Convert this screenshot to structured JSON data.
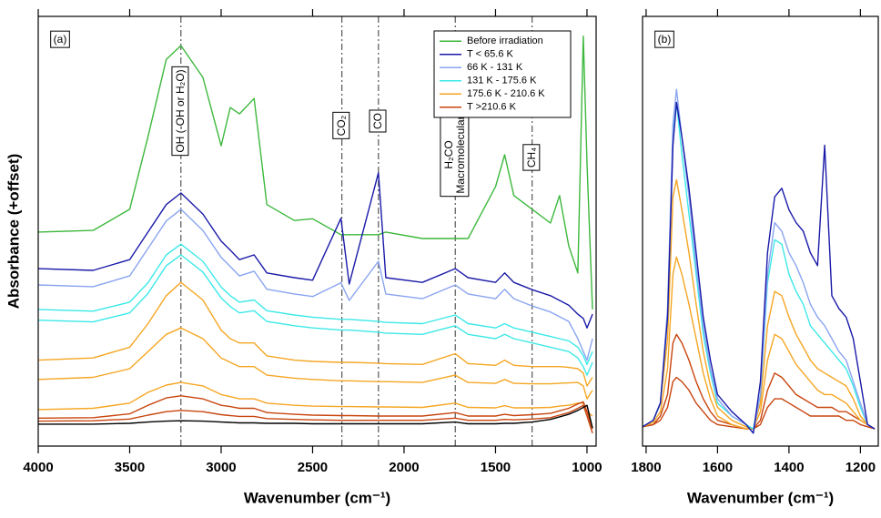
{
  "chart_data": [
    {
      "type": "line",
      "panel_label": "(a)",
      "ylabel": "Absorbance (+offset)",
      "xlabel": "Wavenumber (cm⁻¹)",
      "xlim": [
        4000,
        950
      ],
      "ylim": [
        0,
        100
      ],
      "xticks": [
        4000,
        3500,
        3000,
        2500,
        2000,
        1500,
        1000
      ],
      "legend": "upper right",
      "x": [
        4000,
        3700,
        3500,
        3400,
        3300,
        3220,
        3100,
        3000,
        2950,
        2900,
        2820,
        2750,
        2600,
        2500,
        2345,
        2300,
        2140,
        2100,
        1900,
        1720,
        1650,
        1500,
        1450,
        1400,
        1300,
        1200,
        1150,
        1100,
        1050,
        1020,
        1000,
        970
      ],
      "annotations": [
        {
          "lines": [
            "OH (-OH or H₂O)"
          ],
          "x": 3220
        },
        {
          "lines": [
            "CO₂"
          ],
          "x": 2340
        },
        {
          "lines": [
            "CO"
          ],
          "x": 2140
        },
        {
          "lines": [
            "H₂CO",
            "Macromolecular"
          ],
          "x": 1720
        },
        {
          "lines": [
            "CH₄"
          ],
          "x": 1300
        }
      ],
      "series": [
        {
          "name": "Before irradiation",
          "color": "#3cb83c",
          "values": [
            49.8,
            50.2,
            55.1,
            72.0,
            90.0,
            93.2,
            85.8,
            69.9,
            78.8,
            77.3,
            80.9,
            56.2,
            52.5,
            52.9,
            49.2,
            49.2,
            49.2,
            49.8,
            48.3,
            48.3,
            48.3,
            60.4,
            67.8,
            58.3,
            55.1,
            51.9,
            58.3,
            46.6,
            40.3,
            95.4,
            65.7,
            31.8
          ]
        },
        {
          "name": "T < 65.6 K",
          "color": "#1a1aa8",
          "values": [
            41.3,
            40.9,
            43.4,
            49.8,
            56.2,
            58.9,
            54.0,
            47.7,
            45.6,
            43.4,
            44.5,
            40.3,
            39.2,
            38.6,
            53.0,
            37.7,
            63.6,
            39.2,
            38.1,
            41.3,
            39.2,
            38.1,
            40.3,
            38.1,
            36.4,
            35.0,
            33.9,
            32.8,
            30.7,
            29.7,
            27.5,
            30.7
          ]
        },
        {
          "name": "66 K - 131 K",
          "color": "#8aa4f0",
          "values": [
            37.5,
            37.1,
            39.6,
            46.0,
            52.4,
            55.1,
            50.2,
            43.9,
            41.8,
            39.6,
            40.7,
            36.5,
            35.4,
            34.8,
            38.0,
            33.9,
            43.0,
            35.4,
            34.3,
            37.5,
            35.4,
            34.3,
            36.5,
            34.3,
            32.6,
            31.2,
            30.1,
            29.0,
            25.0,
            22.0,
            20.0,
            25.0
          ]
        },
        {
          "name": "131 K - 175.6 K",
          "color": "#3de8e8",
          "values": [
            31.8,
            31.4,
            33.5,
            38.0,
            44.5,
            47.0,
            43.0,
            37.0,
            35.0,
            33.5,
            34.0,
            31.5,
            30.5,
            30.0,
            29.5,
            29.5,
            29.0,
            28.8,
            28.5,
            30.5,
            28.5,
            27.5,
            28.5,
            27.5,
            26.5,
            25.5,
            25.0,
            24.5,
            23.0,
            21.0,
            19.0,
            22.0
          ]
        },
        {
          "color": "#3de8e8",
          "values": [
            29.3,
            28.9,
            31,
            35.5,
            42,
            44.5,
            40.5,
            34.5,
            32.5,
            31,
            31.5,
            29,
            28,
            27.5,
            27,
            27,
            26.5,
            26.3,
            26,
            28,
            26,
            25,
            26,
            25,
            24,
            23,
            22.5,
            22,
            20.5,
            18.5,
            16.5,
            19.5
          ]
        },
        {
          "name": "175.6 K - 210.6 K",
          "color": "#f5a623",
          "values": [
            20.0,
            20.5,
            23.0,
            28.5,
            35.0,
            38.1,
            34.0,
            27.0,
            25.0,
            24.0,
            24.0,
            21.0,
            20.0,
            19.7,
            19.5,
            19.5,
            19.3,
            19.2,
            19.0,
            21.5,
            19.2,
            18.8,
            20.0,
            18.8,
            18.5,
            18.5,
            18.5,
            18.3,
            18.0,
            17.0,
            14.0,
            16.0
          ]
        },
        {
          "color": "#f5a623",
          "values": [
            15.5,
            16,
            18,
            22,
            26,
            27.5,
            25,
            20.5,
            19.5,
            18.5,
            18.5,
            16.5,
            15.8,
            15.5,
            15.2,
            15.2,
            15,
            15,
            14.8,
            16.5,
            14.8,
            14.6,
            15.5,
            14.6,
            14.5,
            14.5,
            14.6,
            14.7,
            14.8,
            14,
            11,
            13
          ]
        },
        {
          "color": "#f5a623",
          "values": [
            8.5,
            8.8,
            10,
            12.5,
            14.2,
            14.8,
            14,
            12,
            11.5,
            11,
            11,
            10,
            9.5,
            9.3,
            9.2,
            9.2,
            9.1,
            9.1,
            9,
            10,
            9,
            8.9,
            9.4,
            8.9,
            8.9,
            9,
            9.3,
            9.5,
            10,
            10,
            8,
            7
          ]
        },
        {
          "name": "T >210.6 K",
          "color": "#c8450e",
          "values": [
            6.5,
            6.6,
            7.5,
            9.5,
            11.2,
            11.7,
            11,
            9.5,
            9.2,
            8.8,
            8.8,
            7.8,
            7.4,
            7.2,
            7.1,
            7.1,
            7,
            7,
            7,
            7.8,
            7,
            7,
            7.4,
            7.1,
            7.3,
            7.6,
            8.2,
            8.8,
            9.8,
            10.3,
            8,
            4
          ]
        },
        {
          "color": "#c8450e",
          "values": [
            5.8,
            5.9,
            6.3,
            7.2,
            8,
            8.3,
            8,
            7.3,
            7.1,
            6.9,
            6.9,
            6.4,
            6.2,
            6.1,
            6,
            6,
            6,
            6,
            6,
            6.5,
            6,
            6,
            6.2,
            6.1,
            6.3,
            6.6,
            7.2,
            7.8,
            8.8,
            9.5,
            7,
            3
          ]
        },
        {
          "color": "#000000",
          "values": [
            5.1,
            5.1,
            5.3,
            5.6,
            5.8,
            5.9,
            5.8,
            5.6,
            5.5,
            5.4,
            5.4,
            5.3,
            5.3,
            5.2,
            5.2,
            5.2,
            5.2,
            5.2,
            5.2,
            5.6,
            5.2,
            5.2,
            5.3,
            5.3,
            5.6,
            6.2,
            6.8,
            7.4,
            8.3,
            9.0,
            9.5,
            4.2
          ]
        }
      ]
    },
    {
      "type": "line",
      "panel_label": "(b)",
      "xlabel": "Wavenumber (cm⁻¹)",
      "xlim": [
        1810,
        1150
      ],
      "ylim": [
        0,
        100
      ],
      "xticks": [
        1800,
        1600,
        1400,
        1200
      ],
      "x": [
        1810,
        1780,
        1760,
        1740,
        1725,
        1715,
        1700,
        1680,
        1660,
        1640,
        1620,
        1600,
        1560,
        1520,
        1500,
        1480,
        1460,
        1440,
        1420,
        1400,
        1380,
        1360,
        1340,
        1320,
        1300,
        1280,
        1260,
        1240,
        1220,
        1200,
        1180,
        1160
      ],
      "series": [
        {
          "color": "#c8450e",
          "values": [
            4.5,
            5,
            6,
            9,
            15,
            16,
            15,
            13,
            10,
            8,
            6,
            5,
            4.5,
            4,
            4,
            5,
            9,
            11,
            11,
            10,
            9,
            8,
            7,
            7,
            7,
            7,
            7,
            6,
            6,
            5,
            4.5,
            4
          ]
        },
        {
          "color": "#c8450e",
          "values": [
            4.5,
            5,
            7,
            12,
            24,
            26,
            24,
            20,
            15,
            11,
            8,
            6,
            5,
            4,
            4,
            6,
            13,
            17,
            16,
            14,
            12,
            11,
            10,
            9,
            9,
            9,
            8,
            8,
            7,
            6,
            5,
            4
          ]
        },
        {
          "color": "#f5a623",
          "values": [
            4.5,
            5.5,
            8,
            18,
            40,
            44,
            40,
            33,
            25,
            17,
            11,
            7,
            5,
            4,
            4,
            8,
            20,
            26,
            25,
            22,
            19,
            17,
            15,
            13,
            12,
            12,
            11,
            10,
            8,
            6,
            5,
            4
          ]
        },
        {
          "color": "#f5a623",
          "values": [
            4.5,
            6,
            10,
            25,
            58,
            62,
            55,
            45,
            33,
            22,
            14,
            9,
            6,
            4.5,
            4,
            10,
            28,
            36,
            35,
            30,
            26,
            23,
            20,
            18,
            17,
            16,
            15,
            14,
            11,
            7,
            5,
            4
          ]
        },
        {
          "color": "#3de8e8",
          "values": [
            4.5,
            6,
            10,
            30,
            72,
            80,
            68,
            54,
            40,
            26,
            17,
            10,
            7,
            5,
            4,
            12,
            38,
            48,
            47,
            40,
            36,
            33,
            28,
            26,
            24,
            22,
            20,
            18,
            14,
            9,
            5,
            4
          ]
        },
        {
          "color": "#8aa4f0",
          "values": [
            4.5,
            6,
            10,
            32,
            75,
            83,
            72,
            58,
            42,
            28,
            18,
            11,
            7,
            5,
            3,
            12,
            40,
            52,
            50,
            45,
            42,
            38,
            33,
            30,
            28,
            25,
            22,
            20,
            15,
            10,
            5,
            4
          ]
        },
        {
          "color": "#1a1aa8",
          "values": [
            4.5,
            6,
            10,
            30,
            70,
            80,
            72,
            60,
            45,
            30,
            20,
            12,
            8,
            5,
            3,
            15,
            45,
            58,
            60,
            55,
            52,
            50,
            45,
            42,
            70,
            35,
            32,
            30,
            25,
            15,
            5,
            4
          ]
        }
      ]
    }
  ]
}
